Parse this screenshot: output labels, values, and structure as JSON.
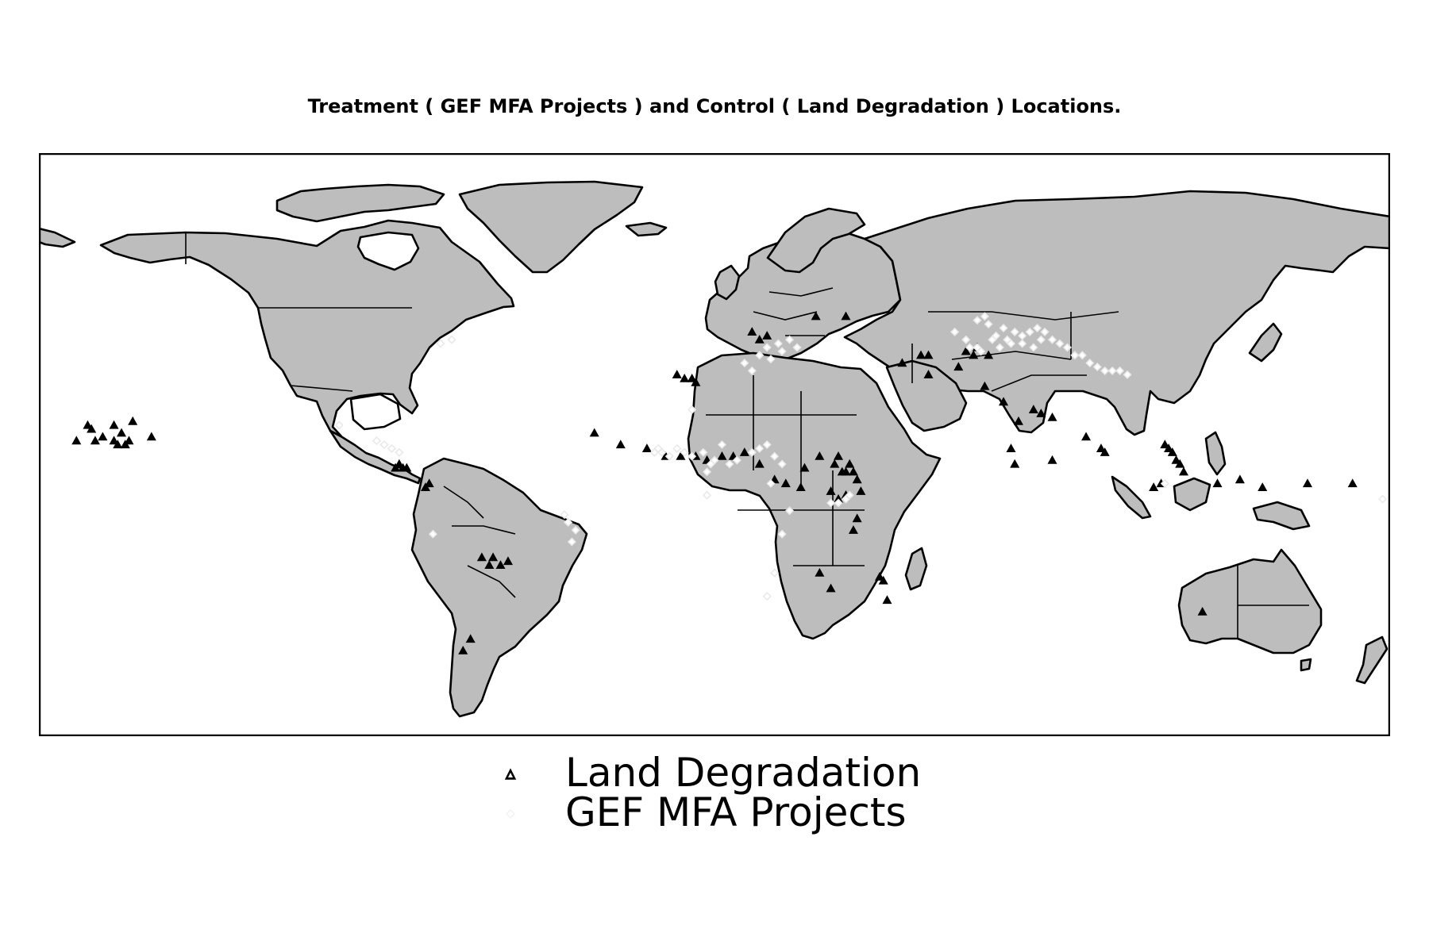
{
  "title": "Treatment ( GEF MFA Projects ) and Control ( Land Degradation ) Locations.",
  "colors": {
    "land": "#bdbdbd",
    "border": "#000000",
    "ocean": "#ffffff",
    "land_degradation_marker": "#000000",
    "gef_marker": "#ffffff"
  },
  "legend": [
    {
      "label": "Land Degradation",
      "marker": "triangle-icon"
    },
    {
      "label": "GEF MFA Projects",
      "marker": "diamond-icon"
    }
  ],
  "map": {
    "projection": "equirectangular",
    "lon_range": [
      -180,
      180
    ],
    "lat_range": [
      -60,
      90
    ]
  },
  "chart_data": {
    "type": "scatter",
    "title": "Treatment ( GEF MFA Projects ) and Control ( Land Degradation ) Locations.",
    "series": [
      {
        "name": "Land Degradation",
        "marker": "triangle",
        "points": [
          [
            -166,
            19
          ],
          [
            -160,
            20
          ],
          [
            -155,
            21
          ],
          [
            -167,
            20
          ],
          [
            -150,
            17
          ],
          [
            -160,
            16
          ],
          [
            -165,
            16
          ],
          [
            -163,
            17
          ],
          [
            -158,
            18
          ],
          [
            -156,
            16
          ],
          [
            -157,
            15
          ],
          [
            -159,
            15
          ],
          [
            -170,
            16
          ],
          [
            -84,
            10
          ],
          [
            -85,
            9
          ],
          [
            -83,
            9
          ],
          [
            -82,
            9
          ],
          [
            -77,
            4
          ],
          [
            -76,
            5
          ],
          [
            -62,
            -14
          ],
          [
            -59,
            -14
          ],
          [
            -57,
            -16
          ],
          [
            -55,
            -15
          ],
          [
            -60,
            -16
          ],
          [
            -65,
            -35
          ],
          [
            -67,
            -38
          ],
          [
            -32,
            18
          ],
          [
            -25,
            15
          ],
          [
            -18,
            14
          ],
          [
            -13,
            12
          ],
          [
            -9,
            12
          ],
          [
            -5,
            12
          ],
          [
            -2,
            11
          ],
          [
            2,
            12
          ],
          [
            5,
            12
          ],
          [
            8,
            13
          ],
          [
            -10,
            33
          ],
          [
            -8,
            32
          ],
          [
            -6,
            32
          ],
          [
            -5,
            31
          ],
          [
            12,
            10
          ],
          [
            16,
            6
          ],
          [
            19,
            5
          ],
          [
            24,
            9
          ],
          [
            23,
            4
          ],
          [
            28,
            12
          ],
          [
            32,
            10
          ],
          [
            34,
            8
          ],
          [
            35,
            8
          ],
          [
            37,
            8
          ],
          [
            38,
            6
          ],
          [
            36,
            10
          ],
          [
            33,
            12
          ],
          [
            31,
            3
          ],
          [
            33,
            1
          ],
          [
            35,
            2
          ],
          [
            39,
            3
          ],
          [
            37,
            -7
          ],
          [
            38,
            -4
          ],
          [
            44,
            -19
          ],
          [
            45,
            -20
          ],
          [
            46,
            -25
          ],
          [
            28,
            -18
          ],
          [
            31,
            -22
          ],
          [
            10,
            44
          ],
          [
            12,
            42
          ],
          [
            14,
            43
          ],
          [
            50,
            36
          ],
          [
            55,
            38
          ],
          [
            57,
            38
          ],
          [
            67,
            39
          ],
          [
            69,
            38
          ],
          [
            70,
            40
          ],
          [
            73,
            38
          ],
          [
            65,
            35
          ],
          [
            57,
            33
          ],
          [
            72,
            30
          ],
          [
            77,
            26
          ],
          [
            81,
            21
          ],
          [
            87,
            23
          ],
          [
            85,
            24
          ],
          [
            90,
            22
          ],
          [
            79,
            14
          ],
          [
            80,
            10
          ],
          [
            90,
            11
          ],
          [
            99,
            17
          ],
          [
            103,
            14
          ],
          [
            104,
            13
          ],
          [
            120,
            15
          ],
          [
            121,
            14
          ],
          [
            122,
            13
          ],
          [
            123,
            11
          ],
          [
            124,
            10
          ],
          [
            125,
            8
          ],
          [
            119,
            5
          ],
          [
            117,
            4
          ],
          [
            134,
            5
          ],
          [
            140,
            6
          ],
          [
            146,
            4
          ],
          [
            158,
            5
          ],
          [
            170,
            5
          ],
          [
            27,
            48
          ],
          [
            35,
            48
          ],
          [
            130,
            -28
          ]
        ]
      },
      {
        "name": "GEF MFA Projects",
        "marker": "diamond",
        "points": [
          [
            -73,
            41
          ],
          [
            -70,
            42
          ],
          [
            -100,
            20
          ],
          [
            -90,
            16
          ],
          [
            -88,
            15
          ],
          [
            -86,
            14
          ],
          [
            -84,
            13
          ],
          [
            -75,
            -8
          ],
          [
            -40,
            -3
          ],
          [
            -39,
            -5
          ],
          [
            -37,
            -7
          ],
          [
            -38,
            -10
          ],
          [
            -16,
            13
          ],
          [
            -15,
            14
          ],
          [
            -14,
            13
          ],
          [
            -12,
            12
          ],
          [
            -10,
            14
          ],
          [
            -8,
            13
          ],
          [
            -6,
            12
          ],
          [
            -3,
            13
          ],
          [
            -1,
            10
          ],
          [
            0,
            11
          ],
          [
            -2,
            8
          ],
          [
            4,
            10
          ],
          [
            6,
            11
          ],
          [
            2,
            15
          ],
          [
            10,
            13
          ],
          [
            12,
            14
          ],
          [
            14,
            15
          ],
          [
            18,
            10
          ],
          [
            16,
            12
          ],
          [
            -6,
            24
          ],
          [
            -2,
            2
          ],
          [
            15,
            5
          ],
          [
            20,
            -2
          ],
          [
            18,
            -8
          ],
          [
            16,
            -18
          ],
          [
            14,
            -24
          ],
          [
            33,
            0
          ],
          [
            35,
            1
          ],
          [
            36,
            2
          ],
          [
            31,
            0
          ],
          [
            12,
            38
          ],
          [
            14,
            40
          ],
          [
            15,
            37
          ],
          [
            17,
            41
          ],
          [
            18,
            39
          ],
          [
            20,
            42
          ],
          [
            22,
            40
          ],
          [
            8,
            36
          ],
          [
            10,
            34
          ],
          [
            64,
            44
          ],
          [
            67,
            42
          ],
          [
            68,
            40
          ],
          [
            70,
            40
          ],
          [
            71,
            39
          ],
          [
            74,
            42
          ],
          [
            75,
            43
          ],
          [
            78,
            42
          ],
          [
            80,
            44
          ],
          [
            82,
            43
          ],
          [
            84,
            44
          ],
          [
            86,
            45
          ],
          [
            88,
            44
          ],
          [
            90,
            42
          ],
          [
            92,
            41
          ],
          [
            94,
            40
          ],
          [
            96,
            38
          ],
          [
            98,
            38
          ],
          [
            100,
            36
          ],
          [
            102,
            35
          ],
          [
            104,
            34
          ],
          [
            106,
            34
          ],
          [
            108,
            34
          ],
          [
            110,
            33
          ],
          [
            79,
            41
          ],
          [
            82,
            41
          ],
          [
            85,
            40
          ],
          [
            87,
            42
          ],
          [
            76,
            40
          ],
          [
            73,
            46
          ],
          [
            77,
            45
          ],
          [
            70,
            47
          ],
          [
            72,
            48
          ],
          [
            120,
            5
          ],
          [
            178,
            1
          ]
        ]
      }
    ]
  }
}
